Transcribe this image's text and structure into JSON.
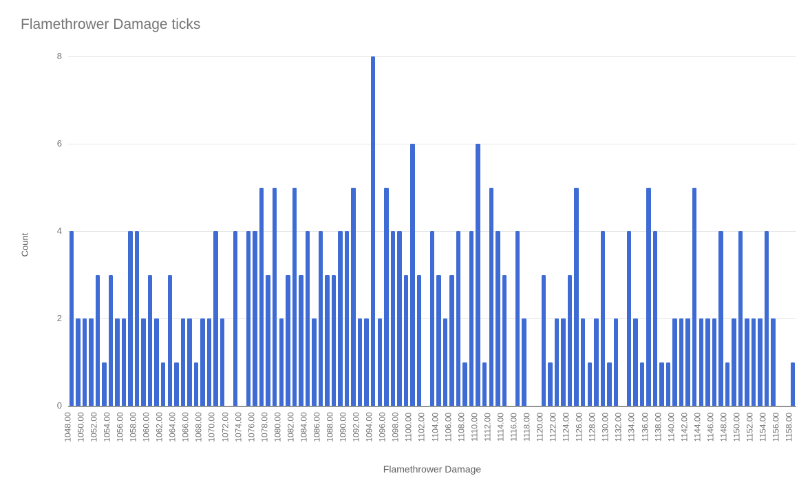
{
  "title": "Flamethrower Damage ticks",
  "colors": {
    "background": "#FFFFFF",
    "bar": "#3E6CD4",
    "gridline": "#E6E6E6",
    "axis_line": "#949494",
    "title_text": "#757575",
    "tick_text": "#757575",
    "axis_title_text": "#616161"
  },
  "chart_data": {
    "type": "bar",
    "title": "Flamethrower Damage ticks",
    "xlabel": "Flamethrower Damage",
    "ylabel": "Count",
    "ylim": [
      0,
      8
    ],
    "yticks": [
      0,
      2,
      4,
      6,
      8
    ],
    "grid": true,
    "legend": "none",
    "bar_color": "#3E6CD4",
    "x_tick_step": 2,
    "x": [
      1048,
      1049,
      1050,
      1051,
      1052,
      1053,
      1054,
      1055,
      1056,
      1057,
      1058,
      1059,
      1060,
      1061,
      1062,
      1063,
      1064,
      1065,
      1066,
      1067,
      1068,
      1069,
      1070,
      1071,
      1072,
      1073,
      1074,
      1075,
      1076,
      1077,
      1078,
      1079,
      1080,
      1081,
      1082,
      1083,
      1084,
      1085,
      1086,
      1087,
      1088,
      1089,
      1090,
      1091,
      1092,
      1093,
      1094,
      1095,
      1096,
      1097,
      1098,
      1099,
      1100,
      1101,
      1102,
      1103,
      1104,
      1105,
      1106,
      1107,
      1108,
      1109,
      1110,
      1111,
      1112,
      1113,
      1114,
      1115,
      1116,
      1117,
      1118,
      1119,
      1120,
      1121,
      1122,
      1123,
      1124,
      1125,
      1126,
      1127,
      1128,
      1129,
      1130,
      1131,
      1132,
      1133,
      1134,
      1135,
      1136,
      1137,
      1138,
      1139,
      1140,
      1141,
      1142,
      1143,
      1144,
      1145,
      1146,
      1147,
      1148,
      1149,
      1150,
      1151,
      1152,
      1153,
      1154,
      1155,
      1156,
      1157,
      1158
    ],
    "values": [
      4,
      2,
      2,
      2,
      3,
      1,
      3,
      2,
      2,
      4,
      4,
      2,
      3,
      2,
      1,
      3,
      1,
      2,
      2,
      1,
      2,
      2,
      4,
      2,
      0,
      4,
      0,
      4,
      4,
      5,
      3,
      5,
      2,
      3,
      5,
      3,
      4,
      2,
      4,
      3,
      3,
      4,
      4,
      5,
      2,
      2,
      8,
      2,
      5,
      4,
      4,
      3,
      6,
      3,
      0,
      4,
      3,
      2,
      3,
      4,
      1,
      4,
      6,
      1,
      5,
      4,
      3,
      0,
      4,
      2,
      0,
      0,
      3,
      1,
      2,
      2,
      3,
      5,
      2,
      1,
      2,
      4,
      1,
      2,
      0,
      4,
      2,
      1,
      5,
      4,
      1,
      1,
      2,
      2,
      2,
      5,
      2,
      2,
      2,
      4,
      1,
      2,
      4,
      2,
      2,
      2,
      4,
      2,
      0,
      0,
      1
    ],
    "x_tick_labels": [
      "1048.00",
      "1050.00",
      "1052.00",
      "1054.00",
      "1056.00",
      "1058.00",
      "1060.00",
      "1062.00",
      "1064.00",
      "1066.00",
      "1068.00",
      "1070.00",
      "1072.00",
      "1074.00",
      "1076.00",
      "1078.00",
      "1080.00",
      "1082.00",
      "1084.00",
      "1086.00",
      "1088.00",
      "1090.00",
      "1092.00",
      "1094.00",
      "1096.00",
      "1098.00",
      "1100.00",
      "1102.00",
      "1104.00",
      "1106.00",
      "1108.00",
      "1110.00",
      "1112.00",
      "1114.00",
      "1116.00",
      "1118.00",
      "1120.00",
      "1122.00",
      "1124.00",
      "1126.00",
      "1128.00",
      "1130.00",
      "1132.00",
      "1134.00",
      "1136.00",
      "1138.00",
      "1140.00",
      "1142.00",
      "1144.00",
      "1146.00",
      "1148.00",
      "1150.00",
      "1152.00",
      "1154.00",
      "1156.00",
      "1158.00"
    ]
  }
}
